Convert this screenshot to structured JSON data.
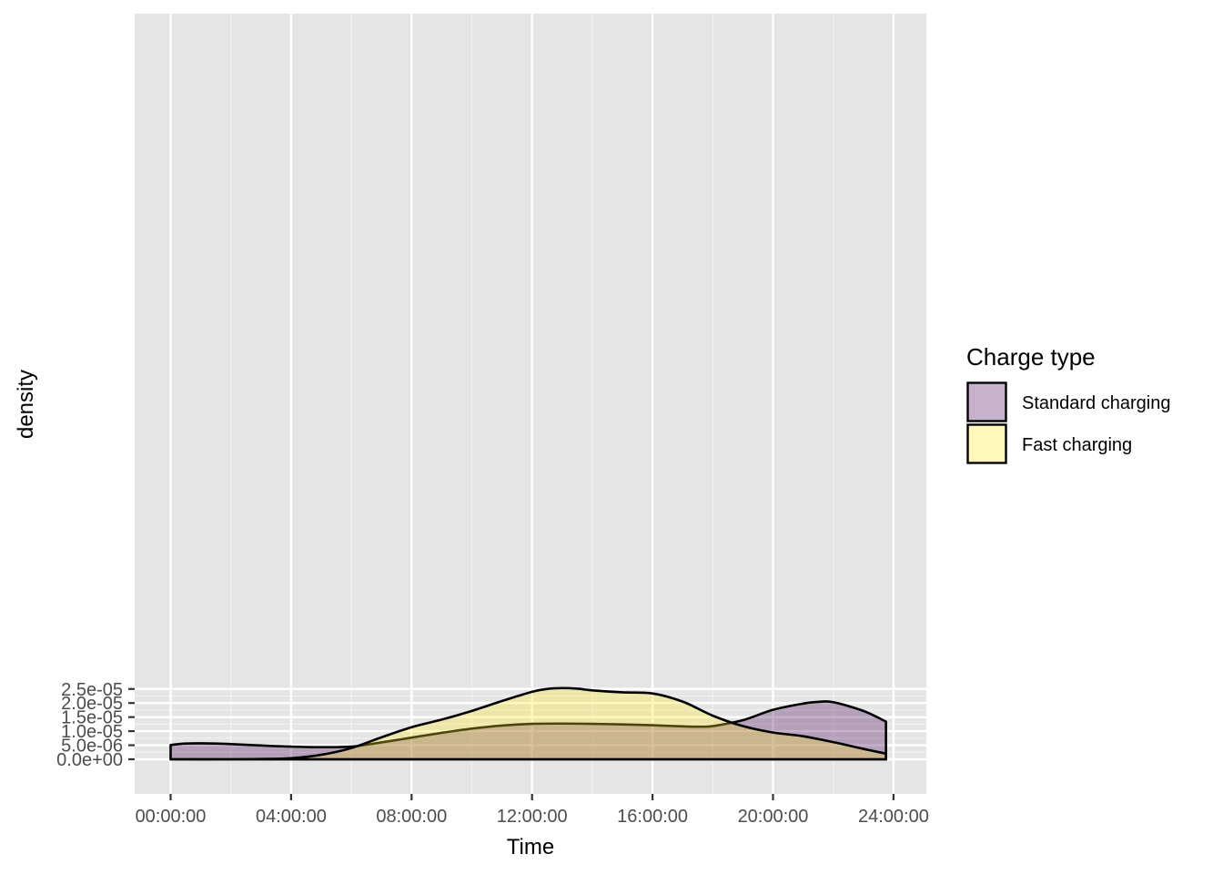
{
  "chart_data": {
    "type": "area",
    "title": "",
    "xlabel": "Time",
    "ylabel": "density",
    "x_unit": "hours",
    "xlim": [
      0,
      24.2
    ],
    "ylim": [
      -2.5e-06,
      2.6e-05
    ],
    "x_ticks": [
      0,
      4,
      8,
      12,
      16,
      20,
      24
    ],
    "x_tick_labels": [
      "00:00:00",
      "04:00:00",
      "08:00:00",
      "12:00:00",
      "16:00:00",
      "20:00:00",
      "24:00:00"
    ],
    "y_ticks": [
      0,
      5e-06,
      1e-05,
      1.5e-05,
      2e-05,
      2.5e-05
    ],
    "y_tick_labels": [
      "0.0e+00",
      "5.0e-06",
      "1.0e-05",
      "1.5e-05",
      "2.0e-05",
      "2.5e-05"
    ],
    "grid": true,
    "legend": {
      "title": "Charge type",
      "position": "right"
    },
    "series": [
      {
        "name": "Standard charging",
        "color": "#440154",
        "fill_opacity": 0.3,
        "x": [
          0,
          0.5,
          1,
          1.5,
          2,
          3,
          4,
          5,
          6,
          7,
          8,
          9,
          10,
          11,
          12,
          13,
          14,
          15,
          16,
          17,
          17.5,
          18,
          19,
          20,
          21,
          21.5,
          22,
          23,
          23.75
        ],
        "y": [
          5.1e-06,
          5.6e-06,
          5.7e-06,
          5.6e-06,
          5.4e-06,
          4.9e-06,
          4.5e-06,
          4.3e-06,
          4.5e-06,
          6e-06,
          7.7e-06,
          9.4e-06,
          1.09e-05,
          1.2e-05,
          1.26e-05,
          1.27e-05,
          1.26e-05,
          1.24e-05,
          1.21e-05,
          1.17e-05,
          1.16e-05,
          1.18e-05,
          1.39e-05,
          1.76e-05,
          1.98e-05,
          2.04e-05,
          2.03e-05,
          1.72e-05,
          1.34e-05
        ]
      },
      {
        "name": "Fast charging",
        "color": "#fde725",
        "fill_opacity": 0.3,
        "x": [
          0,
          2,
          3,
          4,
          5,
          6,
          7,
          8,
          9,
          10,
          11,
          12,
          12.5,
          13,
          13.5,
          14,
          15,
          16,
          17,
          18,
          19,
          20,
          21,
          22,
          23,
          23.75
        ],
        "y": [
          0,
          0,
          1e-07,
          4e-07,
          1.6e-06,
          4e-06,
          7.8e-06,
          1.14e-05,
          1.41e-05,
          1.72e-05,
          2.07e-05,
          2.4e-05,
          2.5e-05,
          2.53e-05,
          2.51e-05,
          2.45e-05,
          2.38e-05,
          2.34e-05,
          2.05e-05,
          1.55e-05,
          1.18e-05,
          9.5e-06,
          8.2e-06,
          6.1e-06,
          3.7e-06,
          2e-06
        ]
      }
    ]
  }
}
